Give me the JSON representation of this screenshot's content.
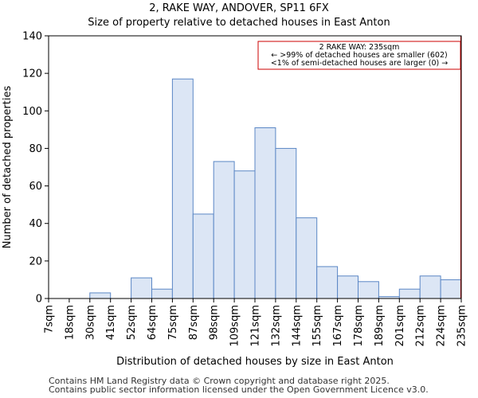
{
  "chart_data": {
    "type": "bar",
    "title": "2, RAKE WAY, ANDOVER, SP11 6FX",
    "subtitle": "Size of property relative to detached houses in East Anton",
    "xlabel": "Distribution of detached houses by size in East Anton",
    "ylabel": "Number of detached properties",
    "ylim": [
      0,
      140
    ],
    "yticks": [
      0,
      20,
      40,
      60,
      80,
      100,
      120,
      140
    ],
    "bin_edges": [
      "7sqm",
      "18sqm",
      "30sqm",
      "41sqm",
      "52sqm",
      "64sqm",
      "75sqm",
      "87sqm",
      "98sqm",
      "109sqm",
      "121sqm",
      "132sqm",
      "144sqm",
      "155sqm",
      "167sqm",
      "178sqm",
      "189sqm",
      "201sqm",
      "212sqm",
      "224sqm",
      "235sqm"
    ],
    "values": [
      0,
      0,
      3,
      0,
      11,
      5,
      117,
      45,
      73,
      68,
      91,
      80,
      43,
      17,
      12,
      9,
      1,
      5,
      12,
      10
    ],
    "bar_color": "#dce6f5",
    "bar_edge_color": "#5b87c5",
    "marker": {
      "value_label": "235sqm",
      "color": "#cc0000",
      "annotation": [
        "2 RAKE WAY: 235sqm",
        "← >99% of detached houses are smaller (602)",
        "<1% of semi-detached houses are larger (0) →"
      ]
    }
  },
  "footer": {
    "line1": "Contains HM Land Registry data © Crown copyright and database right 2025.",
    "line2": "Contains public sector information licensed under the Open Government Licence v3.0."
  }
}
